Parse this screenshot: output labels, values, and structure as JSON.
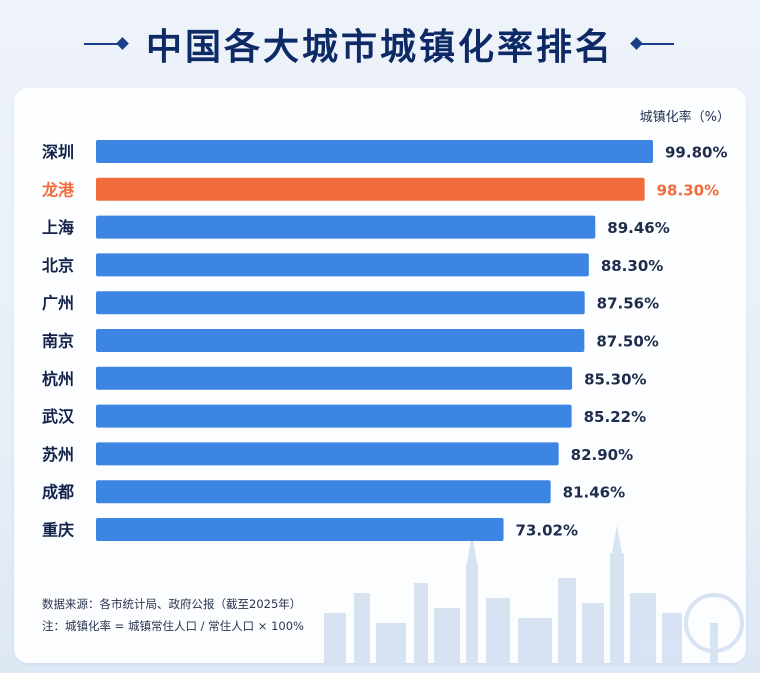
{
  "header": {
    "title": "中国各大城市城镇化率排名"
  },
  "colors": {
    "primary": "#3d85e2",
    "highlight": "#f26b3a",
    "title": "#0e2a66",
    "text": "#1f2d4d"
  },
  "chart_data": {
    "type": "bar",
    "orientation": "horizontal",
    "title": "中国各大城市城镇化率排名",
    "unit_label": "城镇化率（%）",
    "categories": [
      "深圳",
      "龙港",
      "上海",
      "北京",
      "广州",
      "南京",
      "杭州",
      "武汉",
      "苏州",
      "成都",
      "重庆"
    ],
    "values": [
      99.8,
      98.3,
      89.46,
      88.3,
      87.56,
      87.5,
      85.3,
      85.22,
      82.9,
      81.46,
      73.02
    ],
    "value_labels": [
      "99.80%",
      "98.30%",
      "89.46%",
      "88.30%",
      "87.56%",
      "87.50%",
      "85.30%",
      "85.22%",
      "82.90%",
      "81.46%",
      "73.02%"
    ],
    "highlight_index": 1,
    "grid": false,
    "legend": "none"
  },
  "footnotes": {
    "source": "数据来源：各市统计局、政府公报（截至2025年）",
    "note": "注：城镇化率 = 城镇常住人口 / 常住人口 × 100%"
  }
}
